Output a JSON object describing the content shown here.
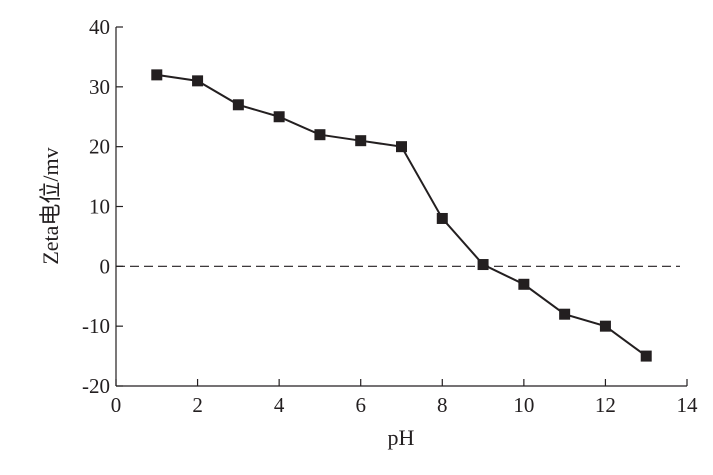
{
  "chart_data": {
    "type": "line",
    "title": "",
    "xlabel": "pH",
    "ylabel": "Zeta电位/mv",
    "xlim": [
      0,
      14
    ],
    "ylim": [
      -20,
      40
    ],
    "xticks": [
      0,
      2,
      4,
      6,
      8,
      10,
      12,
      14
    ],
    "yticks": [
      -20,
      -10,
      0,
      10,
      20,
      30,
      40
    ],
    "xtick_labels": [
      "0",
      "2",
      "4",
      "6",
      "8",
      "10",
      "12",
      "14"
    ],
    "ytick_labels": [
      "-20",
      "-10",
      "0",
      "10",
      "20",
      "30",
      "40"
    ],
    "grid": false,
    "reference_line": {
      "y": 0,
      "style": "dashed"
    },
    "series": [
      {
        "name": "Zeta",
        "marker": "square",
        "color": "#231f20",
        "x": [
          1,
          2,
          3,
          4,
          5,
          6,
          7,
          8,
          9,
          10,
          11,
          12,
          13
        ],
        "y": [
          32,
          31,
          27,
          25,
          22,
          21,
          20,
          8,
          0.3,
          -3,
          -8,
          -10,
          -15
        ]
      }
    ]
  }
}
